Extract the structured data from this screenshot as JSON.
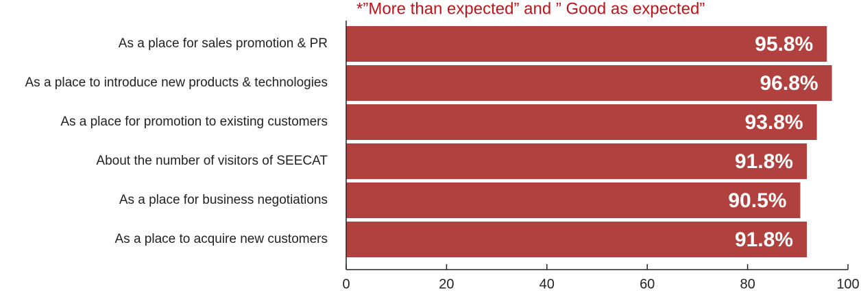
{
  "chart_data": {
    "type": "barh",
    "annotation": "*”More than expected” and ” Good as expected”",
    "categories": [
      "As a place for sales promotion & PR",
      "As a place to introduce new products & technologies",
      "As a place for promotion to existing customers",
      "About the number of visitors of SEECAT",
      "As a place for business negotiations",
      "As a place to acquire new customers"
    ],
    "values": [
      95.8,
      96.8,
      93.8,
      91.8,
      90.5,
      91.8
    ],
    "value_labels": [
      "95.8%",
      "96.8%",
      "93.8%",
      "91.8%",
      "90.5%",
      "91.8%"
    ],
    "color": "#b0413e",
    "xlim": [
      0,
      100
    ],
    "xticks": [
      0,
      20,
      40,
      60,
      80,
      100
    ]
  }
}
